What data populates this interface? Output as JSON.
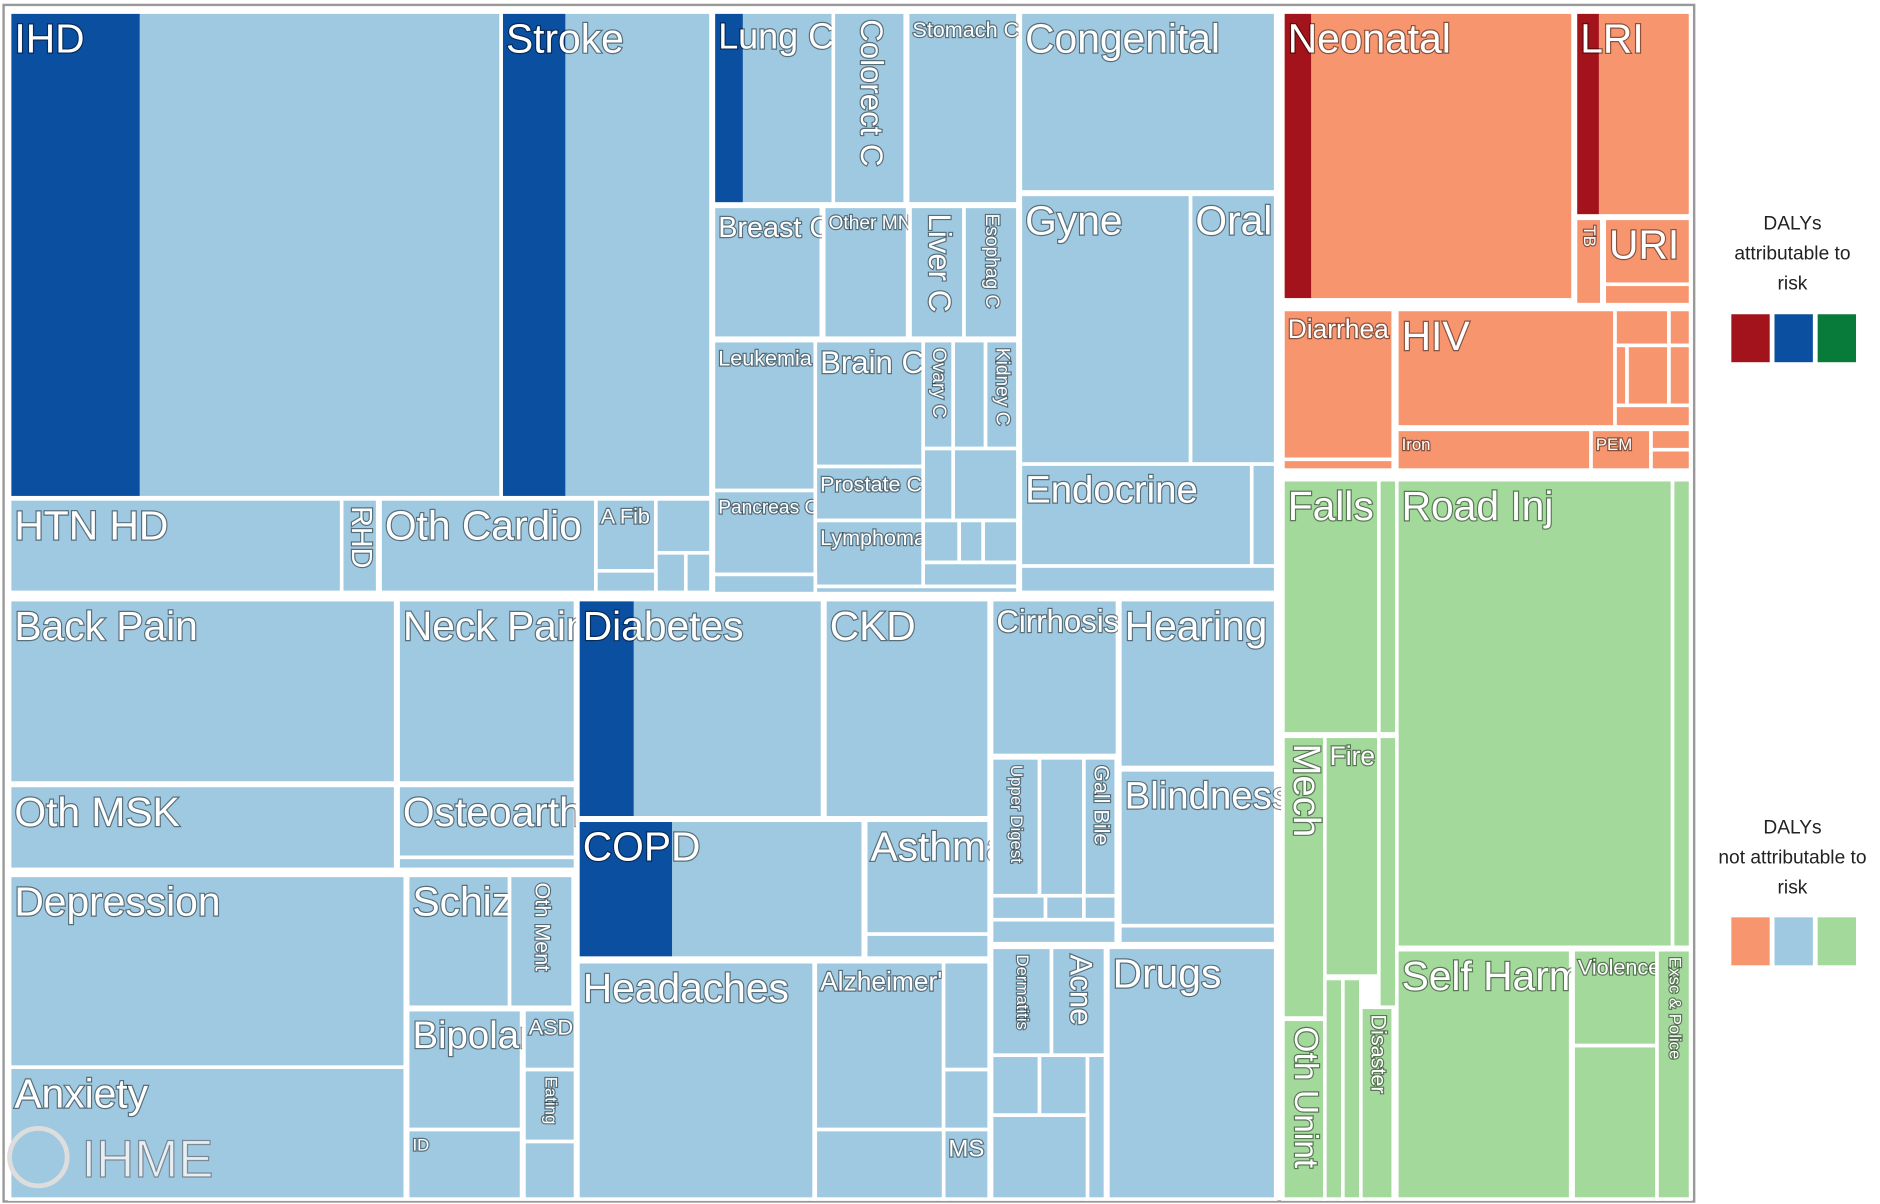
{
  "cells": [
    "IHD",
    "Stroke",
    "Lung C",
    "Colorect C",
    "Stomach C",
    "Congenital",
    "Gyne",
    "Oral",
    "Endocrine",
    "Breast C",
    "Other MN",
    "Liver C",
    "Esophag C",
    "Leukemia",
    "Brain C",
    "Ovary C",
    "Kidney C",
    "Pancreas C",
    "Prostate C",
    "Lymphoma",
    "HTN HD",
    "RHD",
    "Oth Cardio",
    "A Fib",
    "Back Pain",
    "Neck Pain",
    "Oth MSK",
    "Osteoarth",
    "Depression",
    "Schiz",
    "Oth Ment",
    "Bipolar",
    "ASD",
    "Eating",
    "Anxiety",
    "ID",
    "Diabetes",
    "CKD",
    "COPD",
    "Asthma",
    "Headaches",
    "Alzheimer's",
    "MS",
    "Cirrhosis",
    "Hearing",
    "Upper Digest",
    "Gall Bile",
    "Blindness",
    "Dermatitis",
    "Acne",
    "Drugs",
    "Neonatal",
    "LRI",
    "TB",
    "URI",
    "Diarrhea",
    "HIV",
    "Iron",
    "PEM",
    "Falls",
    "Road Inj",
    "Mech",
    "Fire",
    "Oth Unint",
    "Disaster",
    "Self Harm",
    "Violence",
    "Exsc & Police"
  ],
  "legend": {
    "attributable": [
      "DALYs",
      "attributable to",
      "risk"
    ],
    "not_attributable": [
      "DALYs",
      "not attributable to",
      "risk"
    ]
  },
  "logo": "IHME"
}
